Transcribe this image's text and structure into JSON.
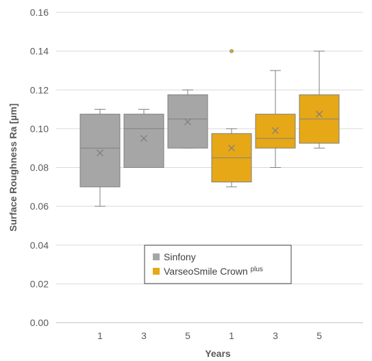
{
  "chart_data": {
    "type": "box",
    "title": "",
    "xlabel": "Years",
    "ylabel": "Surface Roughness Ra [µm]",
    "ylim": [
      0,
      0.16
    ],
    "yticks": [
      "0.00",
      "0.02",
      "0.04",
      "0.06",
      "0.08",
      "0.10",
      "0.12",
      "0.14",
      "0.16"
    ],
    "grid": true,
    "legend_position": "bottom-center",
    "series": [
      {
        "name": "Sinfony",
        "legend_label": "Sinfony",
        "legend_sup": "",
        "color": "#a6a6a6",
        "boxes": [
          {
            "x": "1",
            "min": 0.06,
            "q1": 0.07,
            "median": 0.09,
            "q3": 0.1075,
            "max": 0.11,
            "mean": 0.0875,
            "outliers": []
          },
          {
            "x": "3",
            "min": 0.08,
            "q1": 0.08,
            "median": 0.1,
            "q3": 0.1075,
            "max": 0.11,
            "mean": 0.095,
            "outliers": []
          },
          {
            "x": "5",
            "min": 0.09,
            "q1": 0.09,
            "median": 0.105,
            "q3": 0.1175,
            "max": 0.12,
            "mean": 0.1035,
            "outliers": []
          }
        ]
      },
      {
        "name": "VarseoSmile Crown plus",
        "legend_label": "VarseoSmile Crown ",
        "legend_sup": "plus",
        "color": "#e6a817",
        "boxes": [
          {
            "x": "1",
            "min": 0.07,
            "q1": 0.0725,
            "median": 0.085,
            "q3": 0.0975,
            "max": 0.1,
            "mean": 0.09,
            "outliers": [
              0.14
            ]
          },
          {
            "x": "3",
            "min": 0.08,
            "q1": 0.09,
            "median": 0.095,
            "q3": 0.1075,
            "max": 0.13,
            "mean": 0.099,
            "outliers": []
          },
          {
            "x": "5",
            "min": 0.09,
            "q1": 0.0925,
            "median": 0.105,
            "q3": 0.1175,
            "max": 0.14,
            "mean": 0.1075,
            "outliers": []
          }
        ]
      }
    ]
  }
}
